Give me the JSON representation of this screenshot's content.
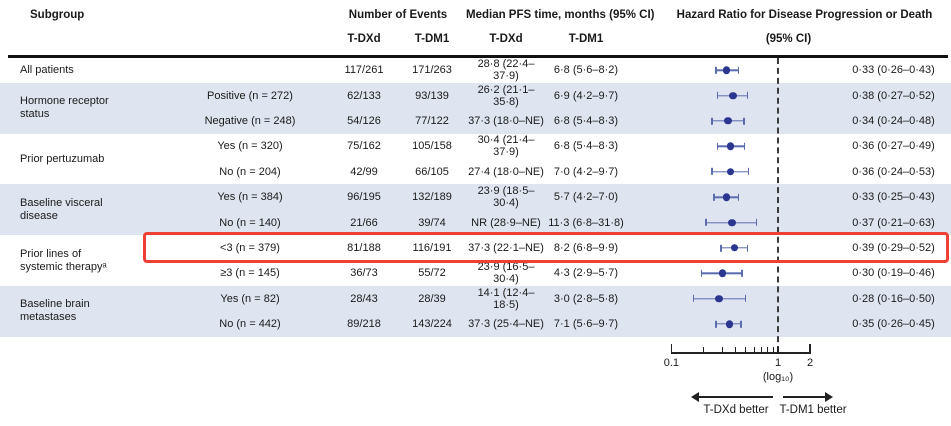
{
  "header": {
    "subgroup": "Subgroup",
    "events": "Number of Events",
    "median": "Median PFS time, months (95% CI)",
    "hr_line1": "Hazard Ratio for Disease Progression or Death",
    "hr_line2": "(95% CI)",
    "events_tdxd": "T-DXd",
    "events_tdm1": "T-DM1",
    "median_tdxd": "T-DXd",
    "median_tdm1": "T-DM1"
  },
  "chart_data": {
    "type": "forest",
    "x_axis": {
      "scale": "log10",
      "range": [
        0.1,
        2
      ],
      "ticks": [
        0.1,
        1,
        2
      ],
      "tick_labels": [
        "0.1",
        "1",
        "2"
      ],
      "minor_ticks": [
        0.2,
        0.3,
        0.4,
        0.5,
        0.6,
        0.7,
        0.8,
        0.9
      ],
      "scale_label": "(log₁₀)",
      "reference_line": 1
    },
    "direction_labels": {
      "left": "T-DXd better",
      "right": "T-DM1 better"
    },
    "highlighted_row": "<3 (n = 379)",
    "groups": [
      {
        "label": "All patients",
        "shaded": false,
        "rows": [
          {
            "level": "",
            "tdxd_events": "117/261",
            "tdm1_events": "171/263",
            "tdxd_median": "28·8 (22·4–37·9)",
            "tdm1_median": "6·8 (5·6–8·2)",
            "hr": 0.33,
            "lo": 0.26,
            "hi": 0.43,
            "hr_text": "0·33 (0·26–0·43)"
          }
        ]
      },
      {
        "label": "Hormone receptor status",
        "shaded": true,
        "rows": [
          {
            "level": "Positive (n = 272)",
            "tdxd_events": "62/133",
            "tdm1_events": "93/139",
            "tdxd_median": "26·2 (21·1–35·8)",
            "tdm1_median": "6·9 (4·2–9·7)",
            "hr": 0.38,
            "lo": 0.27,
            "hi": 0.52,
            "hr_text": "0·38 (0·27–0·52)"
          },
          {
            "level": "Negative (n = 248)",
            "tdxd_events": "54/126",
            "tdm1_events": "77/122",
            "tdxd_median": "37·3 (18·0–NE)",
            "tdm1_median": "6·8 (5·4–8·3)",
            "hr": 0.34,
            "lo": 0.24,
            "hi": 0.48,
            "hr_text": "0·34 (0·24–0·48)"
          }
        ]
      },
      {
        "label": "Prior pertuzumab",
        "shaded": false,
        "rows": [
          {
            "level": "Yes (n = 320)",
            "tdxd_events": "75/162",
            "tdm1_events": "105/158",
            "tdxd_median": "30·4 (21·4–37·9)",
            "tdm1_median": "6·8 (5·4–8·3)",
            "hr": 0.36,
            "lo": 0.27,
            "hi": 0.49,
            "hr_text": "0·36 (0·27–0·49)"
          },
          {
            "level": "No (n = 204)",
            "tdxd_events": "42/99",
            "tdm1_events": "66/105",
            "tdxd_median": "27·4 (18·0–NE)",
            "tdm1_median": "7·0 (4·2–9·7)",
            "hr": 0.36,
            "lo": 0.24,
            "hi": 0.53,
            "hr_text": "0·36 (0·24–0·53)"
          }
        ]
      },
      {
        "label": "Baseline visceral disease",
        "shaded": true,
        "rows": [
          {
            "level": "Yes (n = 384)",
            "tdxd_events": "96/195",
            "tdm1_events": "132/189",
            "tdxd_median": "23·9 (18·5–30·4)",
            "tdm1_median": "5·7 (4·2–7·0)",
            "hr": 0.33,
            "lo": 0.25,
            "hi": 0.43,
            "hr_text": "0·33 (0·25–0·43)"
          },
          {
            "level": "No (n = 140)",
            "tdxd_events": "21/66",
            "tdm1_events": "39/74",
            "tdxd_median": "NR (28·9–NE)",
            "tdm1_median": "11·3 (6·8–31·8)",
            "hr": 0.37,
            "lo": 0.21,
            "hi": 0.63,
            "hr_text": "0·37 (0·21–0·63)"
          }
        ]
      },
      {
        "label": "Prior lines of systemic therapyᵃ",
        "shaded": false,
        "rows": [
          {
            "level": "<3 (n = 379)",
            "tdxd_events": "81/188",
            "tdm1_events": "116/191",
            "tdxd_median": "37·3 (22·1–NE)",
            "tdm1_median": "8·2 (6·8–9·9)",
            "hr": 0.39,
            "lo": 0.29,
            "hi": 0.52,
            "hr_text": "0·39 (0·29–0·52)",
            "highlighted": true
          },
          {
            "level": "≥3 (n = 145)",
            "tdxd_events": "36/73",
            "tdm1_events": "55/72",
            "tdxd_median": "23·9 (16·5–30·4)",
            "tdm1_median": "4·3 (2·9–5·7)",
            "hr": 0.3,
            "lo": 0.19,
            "hi": 0.46,
            "hr_text": "0·30 (0·19–0·46)"
          }
        ]
      },
      {
        "label": "Baseline brain metastases",
        "shaded": true,
        "rows": [
          {
            "level": "Yes (n = 82)",
            "tdxd_events": "28/43",
            "tdm1_events": "28/39",
            "tdxd_median": "14·1 (12·4–18·5)",
            "tdm1_median": "3·0 (2·8–5·8)",
            "hr": 0.28,
            "lo": 0.16,
            "hi": 0.5,
            "hr_text": "0·28 (0·16–0·50)"
          },
          {
            "level": "No (n = 442)",
            "tdxd_events": "89/218",
            "tdm1_events": "143/224",
            "tdxd_median": "37·3 (25·4–NE)",
            "tdm1_median": "7·1 (5·6–9·7)",
            "hr": 0.35,
            "lo": 0.26,
            "hi": 0.45,
            "hr_text": "0·35 (0·26–0·45)"
          }
        ]
      }
    ]
  },
  "colors": {
    "shaded_row": "#dee4f0",
    "marker": "#2a3690",
    "ci_line": "#5b6cae",
    "highlight_box": "#ee4035",
    "reference_line": "#3a3a3a",
    "header_rule": "#111111"
  }
}
